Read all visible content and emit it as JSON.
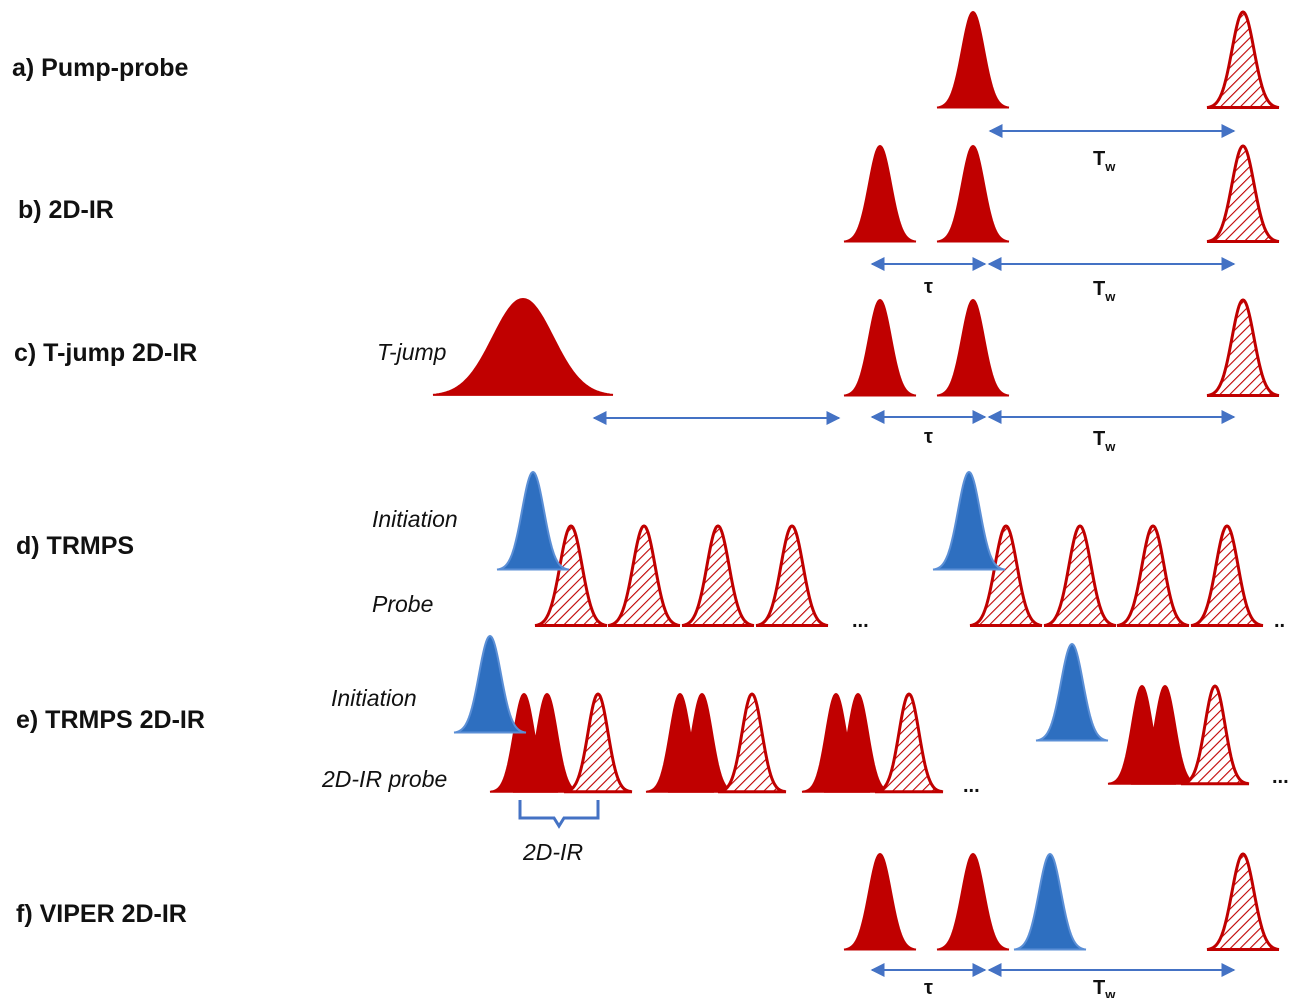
{
  "colors": {
    "pump_pulse": "#c00000",
    "initiation_pulse": "#2e6fc0",
    "arrow": "#4472c4",
    "text": "#111111"
  },
  "rows": {
    "a": {
      "label": "a) Pump-probe",
      "tw": "T",
      "tw_sub": "w"
    },
    "b": {
      "label": "b) 2D-IR",
      "tau": "τ",
      "tw": "T",
      "tw_sub": "w"
    },
    "c": {
      "label": "c) T-jump 2D-IR",
      "tjump": "T-jump",
      "tau": "τ",
      "tw": "T",
      "tw_sub": "w"
    },
    "d": {
      "label": "d) TRMPS",
      "initiation": "Initiation",
      "probe": "Probe",
      "dots1": "...",
      "dots2": ".."
    },
    "e": {
      "label": "e) TRMPS 2D-IR",
      "initiation": "Initiation",
      "probe": "2D-IR probe",
      "bracket": "2D-IR",
      "dots1": "...",
      "dots2": "..."
    },
    "f": {
      "label": "f) VIPER 2D-IR",
      "tau": "τ",
      "tw": "T",
      "tw_sub": "w"
    }
  }
}
